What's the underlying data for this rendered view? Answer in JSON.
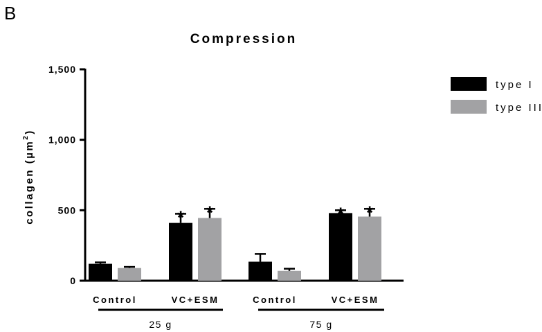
{
  "panel_label": "B",
  "chart_data": {
    "type": "bar",
    "title": "Compression",
    "ylabel": "collagen (µm²)",
    "ylabel_prefix": "collagen (",
    "ylabel_unit": "µm",
    "ylabel_sup": "2",
    "ylabel_suffix": ")",
    "ylim": [
      0,
      1500
    ],
    "yticks": [
      0,
      500,
      1000,
      1500
    ],
    "ytick_labels": [
      "0",
      "500",
      "1,000",
      "1,500"
    ],
    "legend_position": "top-right",
    "series": [
      {
        "name": "type I",
        "color": "#000000",
        "values": [
          120,
          410,
          135,
          480
        ],
        "errors": [
          10,
          65,
          55,
          20
        ]
      },
      {
        "name": "type III",
        "color": "#a2a2a4",
        "values": [
          90,
          445,
          70,
          455
        ],
        "errors": [
          8,
          65,
          15,
          55
        ]
      }
    ],
    "categories": [
      {
        "label": "Control",
        "group": "25 g"
      },
      {
        "label": "VC+ESM",
        "group": "25 g"
      },
      {
        "label": "Control",
        "group": "75 g"
      },
      {
        "label": "VC+ESM",
        "group": "75 g"
      }
    ],
    "groups": [
      "25 g",
      "75 g"
    ],
    "significance_mark": "*",
    "significant_categories": [
      1,
      3
    ]
  }
}
